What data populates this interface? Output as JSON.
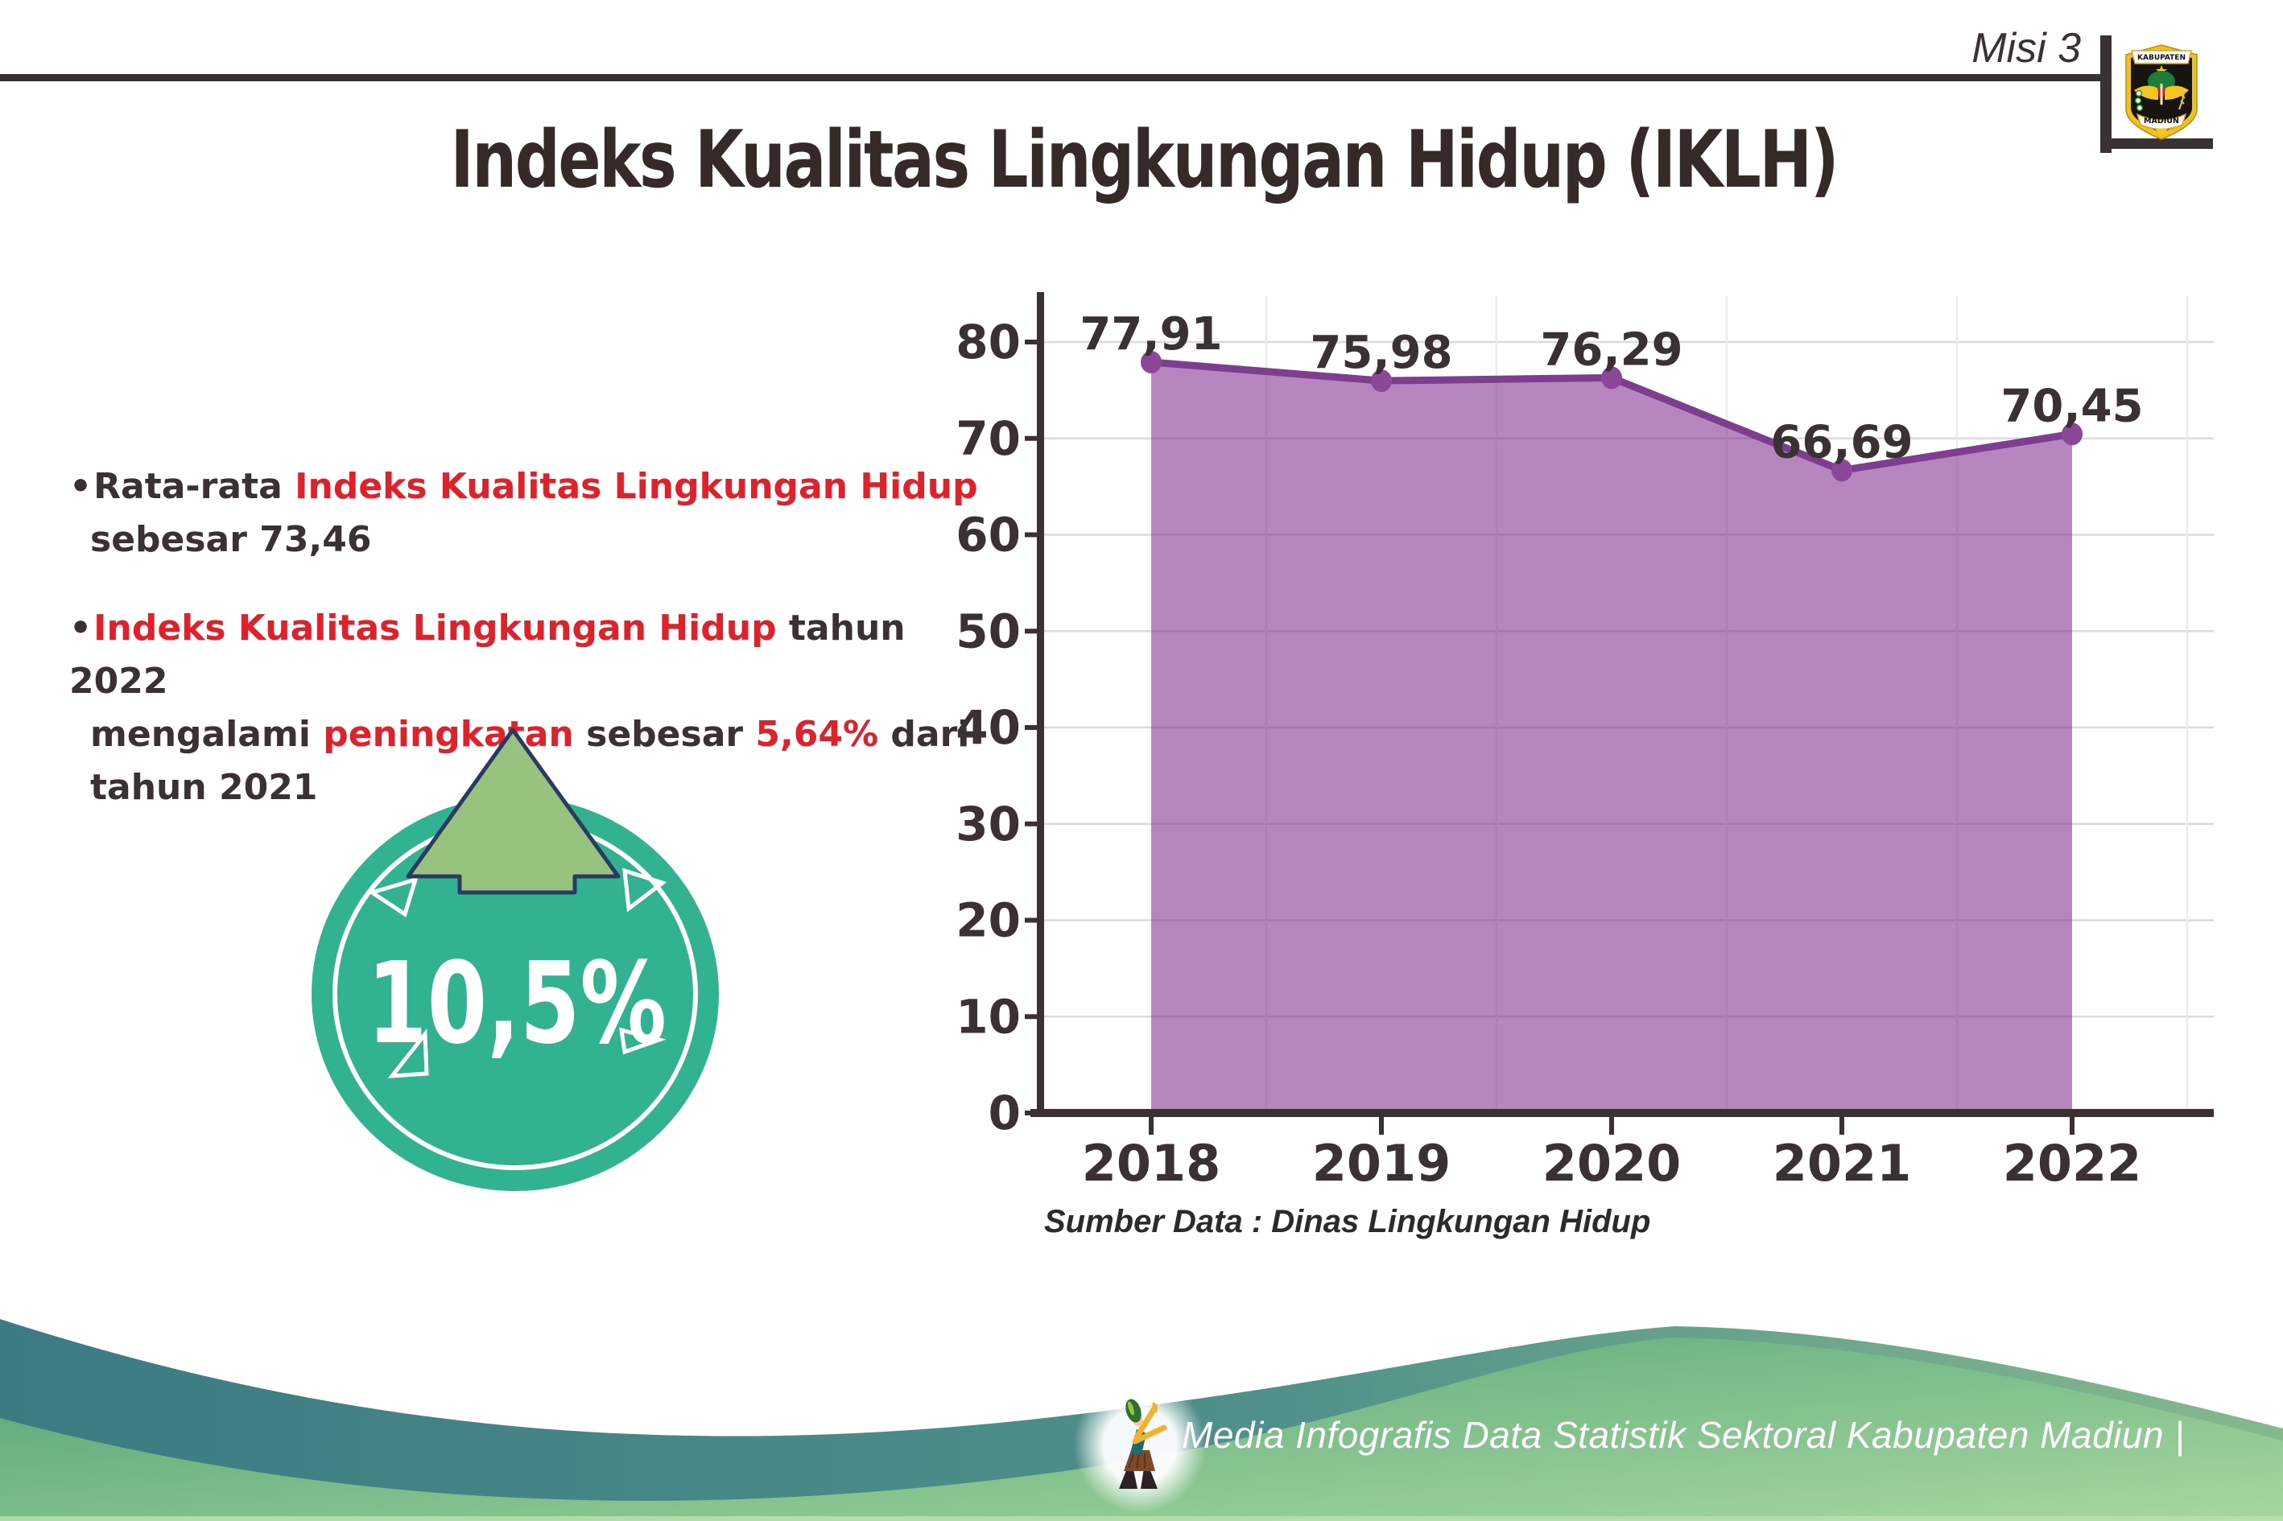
{
  "header": {
    "misi": "Misi 3",
    "title": "Indeks Kualitas Lingkungan Hidup (IKLH)",
    "logo": {
      "top": "KABUPATEN",
      "bottom": "MADIUN"
    }
  },
  "bullets": [
    {
      "lines": [
        {
          "segments": [
            {
              "text": "Rata-rata ",
              "color": "dark"
            },
            {
              "text": "Indeks Kualitas Lingkungan Hidup",
              "color": "red"
            }
          ]
        },
        {
          "segments": [
            {
              "text": "sebesar 73,46",
              "color": "dark"
            }
          ]
        }
      ]
    },
    {
      "lines": [
        {
          "segments": [
            {
              "text": "Indeks Kualitas Lingkungan Hidup",
              "color": "red"
            },
            {
              "text": " tahun 2022",
              "color": "dark"
            }
          ]
        },
        {
          "segments": [
            {
              "text": "mengalami ",
              "color": "dark"
            },
            {
              "text": "peningkatan",
              "color": "red"
            },
            {
              "text": " sebesar ",
              "color": "dark"
            },
            {
              "text": "5,64%",
              "color": "red"
            },
            {
              "text": " dari",
              "color": "dark"
            }
          ]
        },
        {
          "segments": [
            {
              "text": "tahun 2021",
              "color": "dark"
            }
          ]
        }
      ]
    }
  ],
  "badge": {
    "value": "10,5%"
  },
  "chart_data": {
    "type": "area",
    "title": "",
    "xlabel": "",
    "ylabel": "",
    "categories": [
      "2018",
      "2019",
      "2020",
      "2021",
      "2022"
    ],
    "values": [
      77.91,
      75.98,
      76.29,
      66.69,
      70.45
    ],
    "labels": [
      "77,91",
      "75,98",
      "76,29",
      "66,69",
      "70,45"
    ],
    "ylim": [
      0,
      80
    ],
    "yticks": [
      0,
      10,
      20,
      30,
      40,
      50,
      60,
      70,
      80
    ],
    "grid": true,
    "legend": false,
    "source": "Sumber Data : Dinas Lingkungan Hidup"
  },
  "footer": {
    "credit": "Media Infografis Data Statistik Sektoral Kabupaten Madiun |"
  },
  "colors": {
    "text_dark": "#3a3132",
    "accent_red": "#e2202a",
    "badge_teal": "#31b392",
    "arrow_green": "#98c37e",
    "arrow_outline": "#2b3a60",
    "chart_line": "#7d3e90",
    "chart_marker": "#8b4897",
    "chart_fill": "rgba(126,40,140,0.56)",
    "grid": "#dcdada",
    "axis": "#3a3133",
    "wave_teal_left": "#3c7b82",
    "wave_teal_right": "#85b98d",
    "wave_green_dark": "#55a077",
    "wave_green_light": "#a6d79d"
  }
}
